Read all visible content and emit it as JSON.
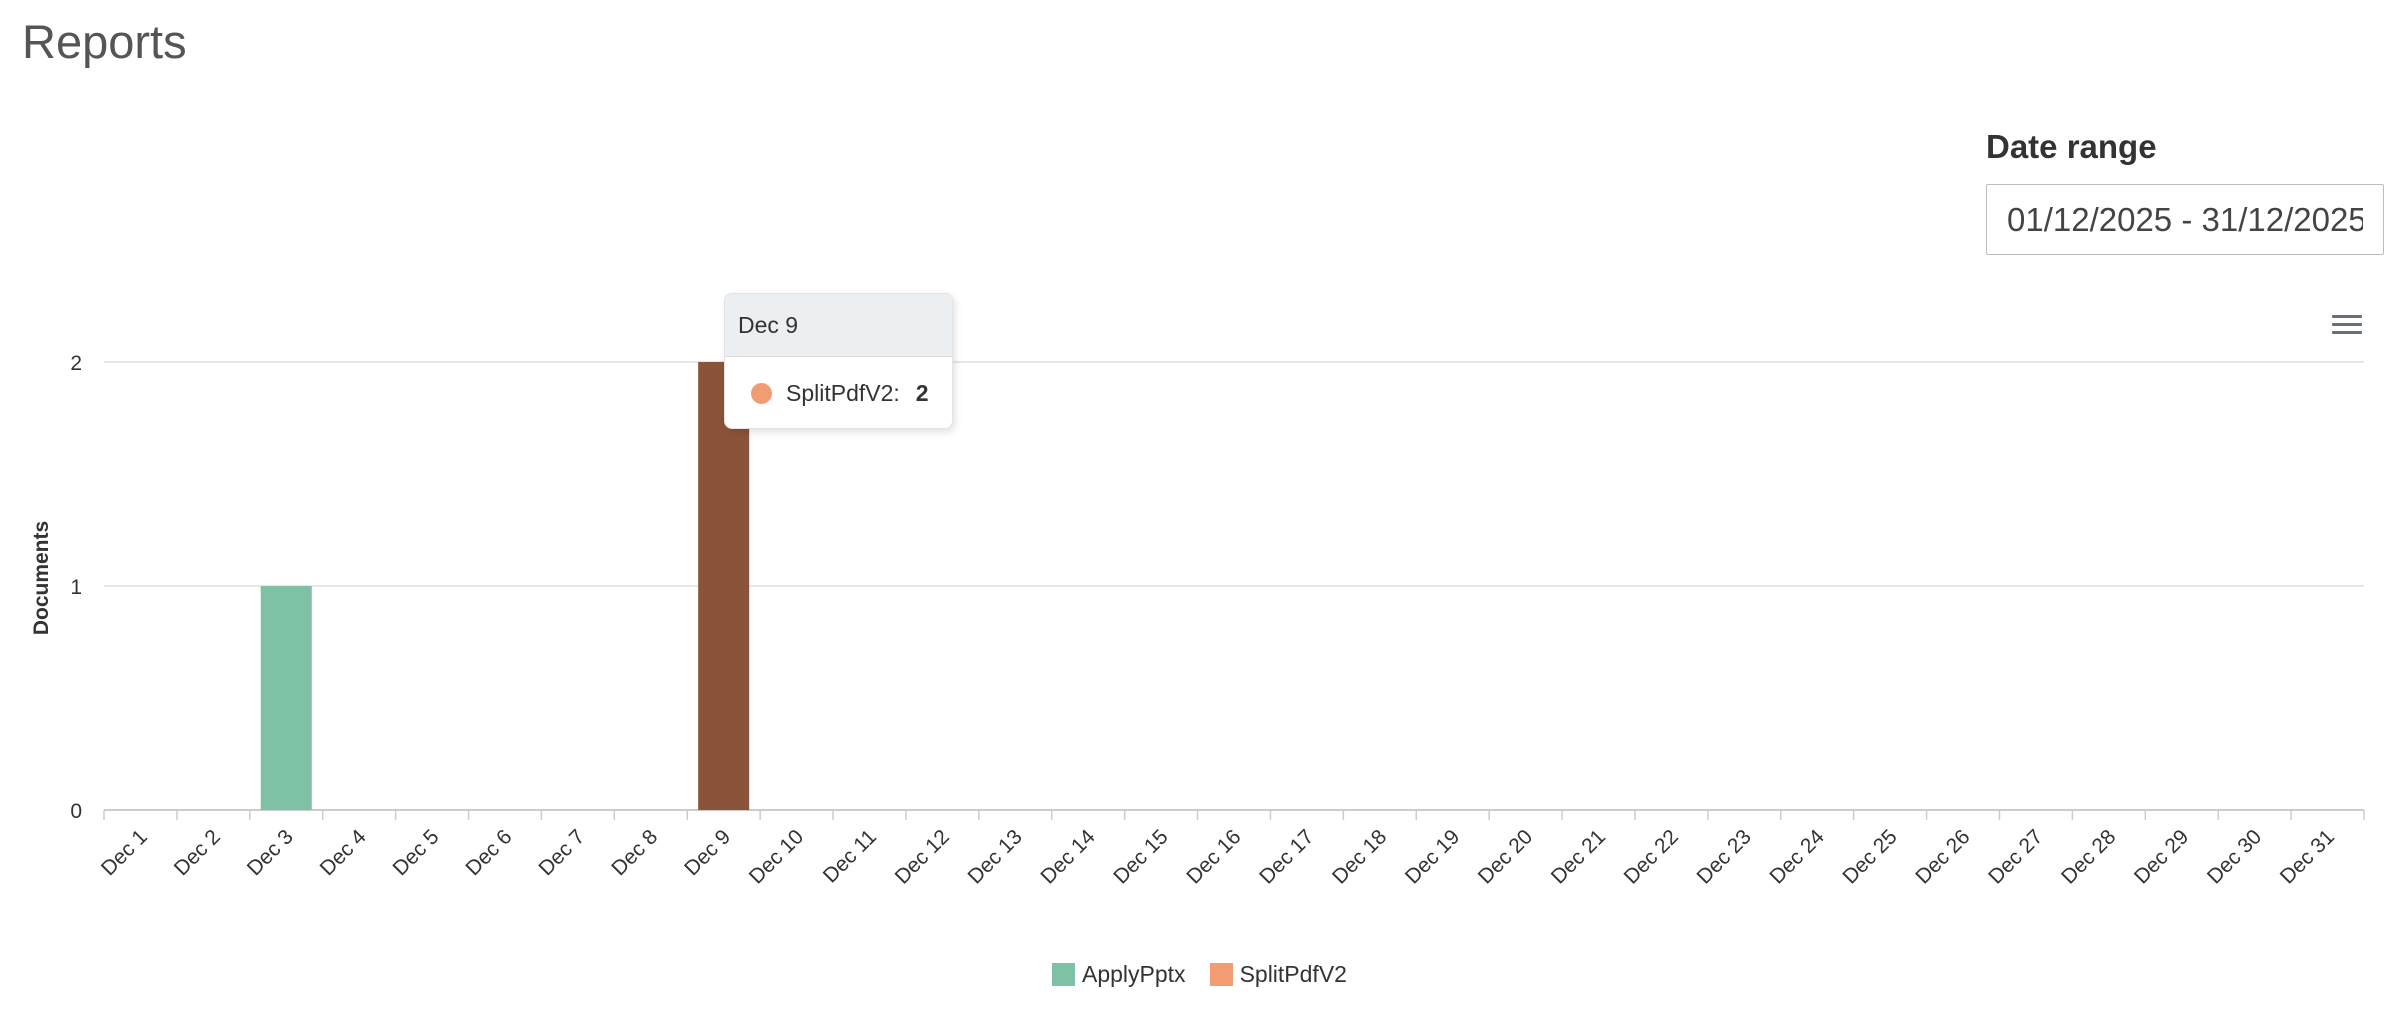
{
  "page": {
    "title": "Reports"
  },
  "date_range": {
    "label": "Date range",
    "value": "01/12/2025 - 31/12/2025"
  },
  "chart_data": {
    "type": "bar",
    "title": "",
    "xlabel": "",
    "ylabel": "Documents",
    "ylim": [
      0,
      2
    ],
    "yticks": [
      0,
      1,
      2
    ],
    "grid": true,
    "legend_position": "bottom-center",
    "categories": [
      "Dec 1",
      "Dec 2",
      "Dec 3",
      "Dec 4",
      "Dec 5",
      "Dec 6",
      "Dec 7",
      "Dec 8",
      "Dec 9",
      "Dec 10",
      "Dec 11",
      "Dec 12",
      "Dec 13",
      "Dec 14",
      "Dec 15",
      "Dec 16",
      "Dec 17",
      "Dec 18",
      "Dec 19",
      "Dec 20",
      "Dec 21",
      "Dec 22",
      "Dec 23",
      "Dec 24",
      "Dec 25",
      "Dec 26",
      "Dec 27",
      "Dec 28",
      "Dec 29",
      "Dec 30",
      "Dec 31"
    ],
    "series": [
      {
        "name": "ApplyPptx",
        "color": "#7fc1a4",
        "values": [
          0,
          0,
          1,
          0,
          0,
          0,
          0,
          0,
          0,
          0,
          0,
          0,
          0,
          0,
          0,
          0,
          0,
          0,
          0,
          0,
          0,
          0,
          0,
          0,
          0,
          0,
          0,
          0,
          0,
          0,
          0
        ]
      },
      {
        "name": "SplitPdfV2",
        "color": "#f29c74",
        "hover_color": "#8b533a",
        "values": [
          0,
          0,
          0,
          0,
          0,
          0,
          0,
          0,
          2,
          0,
          0,
          0,
          0,
          0,
          0,
          0,
          0,
          0,
          0,
          0,
          0,
          0,
          0,
          0,
          0,
          0,
          0,
          0,
          0,
          0,
          0
        ]
      }
    ],
    "hovered": {
      "category": "Dec 9",
      "series": "SplitPdfV2"
    }
  },
  "tooltip": {
    "title": "Dec 9",
    "series_label": "SplitPdfV2:",
    "value": "2",
    "marker_color": "#f29c74"
  },
  "legend": {
    "items": [
      {
        "label": "ApplyPptx",
        "color": "#7fc1a4"
      },
      {
        "label": "SplitPdfV2",
        "color": "#f29c74"
      }
    ]
  },
  "icons": {
    "chart_menu": "hamburger-menu-icon"
  },
  "colors": {
    "gridline": "#e0e0e0",
    "axis": "#cccccc",
    "text": "#333333"
  }
}
